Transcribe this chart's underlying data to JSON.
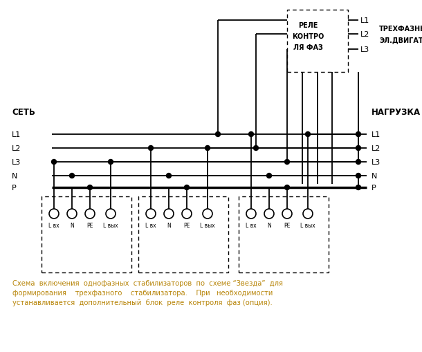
{
  "bg_color": "#ffffff",
  "line_color": "#000000",
  "orange_color": "#b8860b",
  "figsize": [
    6.1,
    5.1
  ],
  "dpi": 100,
  "caption_line1": "Схема  включения  однофазных  стабилизаторов  по  схеме “Звезда”  для",
  "caption_line2": "формирования    трехфазного    стабилизатора.    При   необходимости",
  "caption_line3": "устанавливается  дополнительный  блок  реле  контроля  фаз (опция).",
  "sety_label": "СЕТЬ",
  "nagruzka_label": "НАГРУЗКА",
  "left_labels": [
    "L1",
    "L2",
    "L3",
    "N",
    "P"
  ],
  "right_labels": [
    "L1",
    "L2",
    "L3",
    "N",
    "P"
  ],
  "rele_text": [
    "РЕЛЕ",
    "КОНТРО",
    "ЛЯ ФАЗ"
  ],
  "trehfaz_line1": "ТРЕХФАЗНЫЕ",
  "trehfaz_line2": "ЭЛ.ДВИГАТЕЛИ",
  "trehfaz_labels": [
    "L1",
    "L2",
    "L3"
  ],
  "stab_labels": [
    "L вх",
    "N",
    "PE",
    "L вых"
  ]
}
